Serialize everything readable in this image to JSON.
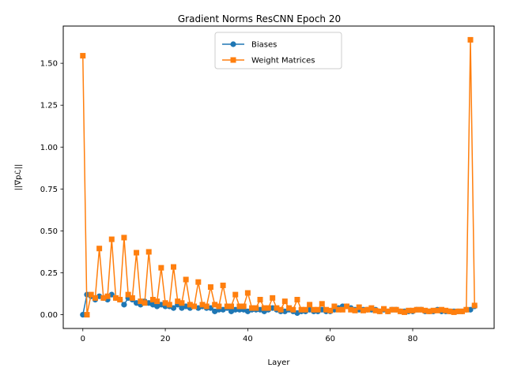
{
  "chart_data": {
    "type": "line",
    "title": "Gradient Norms ResCNN Epoch 20",
    "xlabel": "Layer",
    "ylabel": "||∇pℒ||",
    "xlim": [
      -4.75,
      99.75
    ],
    "ylim": [
      -0.082,
      1.722
    ],
    "xticks": [
      0,
      20,
      40,
      60,
      80
    ],
    "yticks": [
      0.0,
      0.25,
      0.5,
      0.75,
      1.0,
      1.25,
      1.5
    ],
    "ytick_labels": [
      "0.00",
      "0.25",
      "0.50",
      "0.75",
      "1.00",
      "1.25",
      "1.50"
    ],
    "grid": false,
    "legend_position": "top-center",
    "series": [
      {
        "name": "Biases",
        "color": "#1f77b4",
        "marker": "circle",
        "x": [
          0,
          1,
          2,
          3,
          4,
          5,
          6,
          7,
          8,
          9,
          10,
          11,
          12,
          13,
          14,
          15,
          16,
          17,
          18,
          19,
          20,
          21,
          22,
          23,
          24,
          25,
          26,
          27,
          28,
          29,
          30,
          31,
          32,
          33,
          34,
          35,
          36,
          37,
          38,
          39,
          40,
          41,
          42,
          43,
          44,
          45,
          46,
          47,
          48,
          49,
          50,
          51,
          52,
          53,
          54,
          55,
          56,
          57,
          58,
          59,
          60,
          61,
          62,
          63,
          64,
          65,
          66,
          67,
          68,
          69,
          70,
          71,
          72,
          73,
          74,
          75,
          76,
          77,
          78,
          79,
          80,
          81,
          82,
          83,
          84,
          85,
          86,
          87,
          88,
          89,
          90,
          91,
          92,
          93,
          94,
          95
        ],
        "y": [
          0.0,
          0.12,
          0.11,
          0.09,
          0.11,
          0.1,
          0.09,
          0.12,
          0.1,
          0.09,
          0.06,
          0.1,
          0.09,
          0.07,
          0.06,
          0.08,
          0.07,
          0.06,
          0.05,
          0.06,
          0.05,
          0.05,
          0.04,
          0.06,
          0.04,
          0.05,
          0.04,
          0.05,
          0.04,
          0.05,
          0.04,
          0.04,
          0.02,
          0.03,
          0.03,
          0.04,
          0.02,
          0.03,
          0.03,
          0.03,
          0.02,
          0.03,
          0.03,
          0.03,
          0.02,
          0.03,
          0.04,
          0.03,
          0.02,
          0.02,
          0.03,
          0.02,
          0.01,
          0.02,
          0.02,
          0.03,
          0.02,
          0.02,
          0.03,
          0.02,
          0.02,
          0.03,
          0.04,
          0.05,
          0.05,
          0.04,
          0.03,
          0.03,
          0.03,
          0.03,
          0.03,
          0.03,
          0.02,
          0.03,
          0.02,
          0.03,
          0.03,
          0.02,
          0.02,
          0.02,
          0.02,
          0.03,
          0.03,
          0.02,
          0.02,
          0.02,
          0.03,
          0.02,
          0.02,
          0.02,
          0.02,
          0.02,
          0.02,
          0.03,
          0.03,
          0.05
        ]
      },
      {
        "name": "Weight Matrices",
        "color": "#ff7f0e",
        "marker": "square",
        "x": [
          0,
          1,
          2,
          3,
          4,
          5,
          6,
          7,
          8,
          9,
          10,
          11,
          12,
          13,
          14,
          15,
          16,
          17,
          18,
          19,
          20,
          21,
          22,
          23,
          24,
          25,
          26,
          27,
          28,
          29,
          30,
          31,
          32,
          33,
          34,
          35,
          36,
          37,
          38,
          39,
          40,
          41,
          42,
          43,
          44,
          45,
          46,
          47,
          48,
          49,
          50,
          51,
          52,
          53,
          54,
          55,
          56,
          57,
          58,
          59,
          60,
          61,
          62,
          63,
          64,
          65,
          66,
          67,
          68,
          69,
          70,
          71,
          72,
          73,
          74,
          75,
          76,
          77,
          78,
          79,
          80,
          81,
          82,
          83,
          84,
          85,
          86,
          87,
          88,
          89,
          90,
          91,
          92,
          93,
          94,
          95
        ],
        "y": [
          1.545,
          0.0,
          0.12,
          0.1,
          0.395,
          0.1,
          0.11,
          0.45,
          0.1,
          0.09,
          0.46,
          0.12,
          0.1,
          0.37,
          0.08,
          0.07,
          0.375,
          0.09,
          0.08,
          0.28,
          0.07,
          0.06,
          0.285,
          0.08,
          0.07,
          0.21,
          0.06,
          0.05,
          0.195,
          0.06,
          0.05,
          0.165,
          0.06,
          0.05,
          0.175,
          0.05,
          0.05,
          0.12,
          0.05,
          0.05,
          0.13,
          0.04,
          0.04,
          0.09,
          0.04,
          0.04,
          0.1,
          0.04,
          0.03,
          0.08,
          0.04,
          0.03,
          0.09,
          0.03,
          0.03,
          0.06,
          0.03,
          0.03,
          0.065,
          0.03,
          0.025,
          0.05,
          0.03,
          0.03,
          0.05,
          0.03,
          0.025,
          0.045,
          0.025,
          0.03,
          0.04,
          0.025,
          0.02,
          0.035,
          0.02,
          0.03,
          0.03,
          0.02,
          0.015,
          0.025,
          0.025,
          0.03,
          0.03,
          0.025,
          0.02,
          0.025,
          0.025,
          0.03,
          0.025,
          0.02,
          0.015,
          0.02,
          0.02,
          0.03,
          1.64,
          0.055
        ]
      }
    ]
  }
}
